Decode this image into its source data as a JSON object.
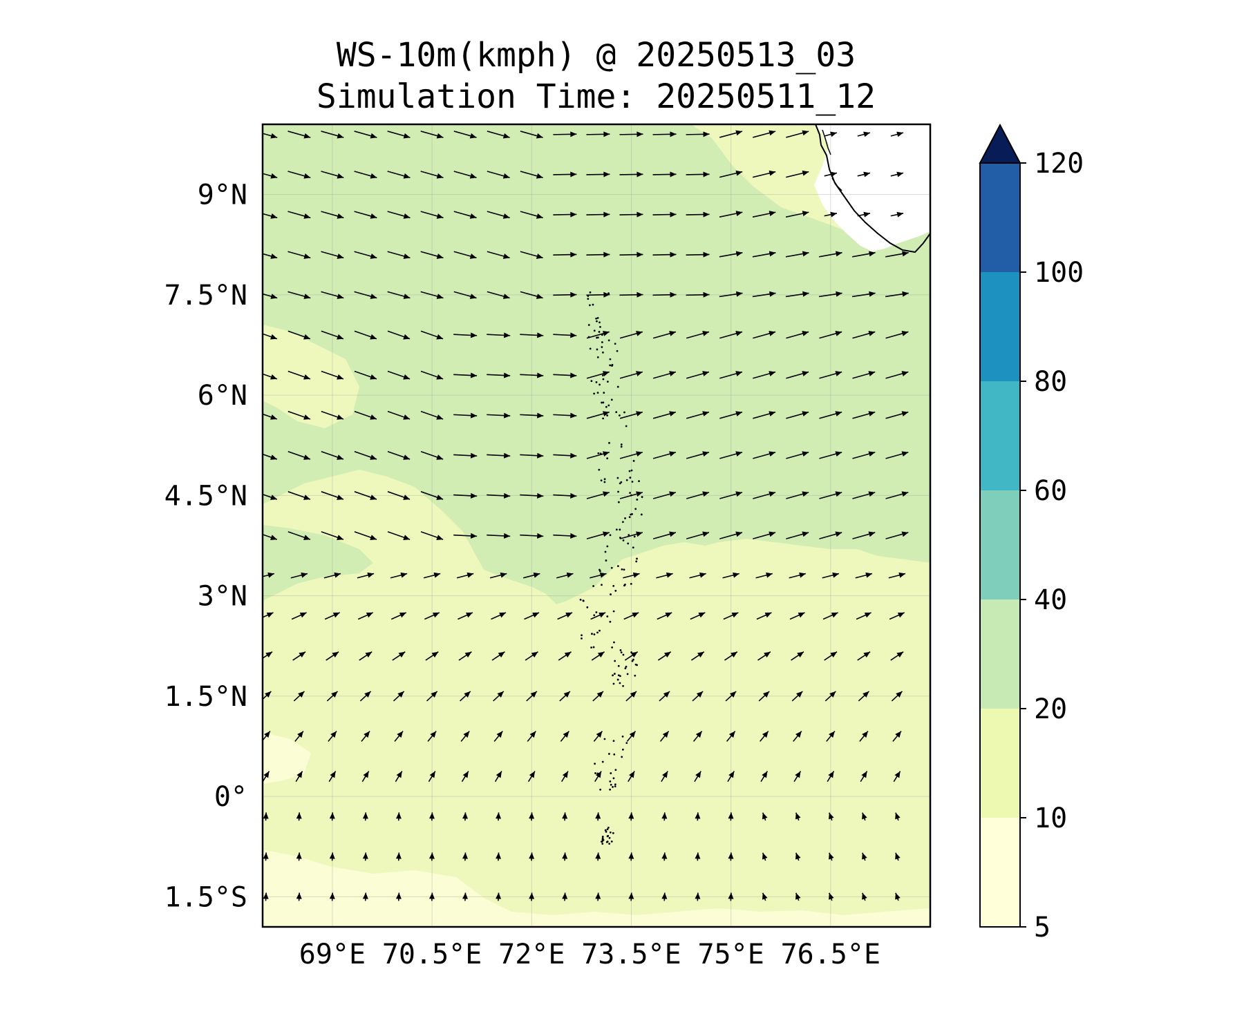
{
  "title": "WS-10m(kmph) @ 20250513_03",
  "subtitle": "Simulation Time: 20250511_12",
  "map": {
    "lon_range": [
      67.95,
      78.0
    ],
    "lat_range": [
      -1.95,
      10.05
    ],
    "lat_ticks": [
      {
        "value": 9,
        "label": "9°N"
      },
      {
        "value": 7.5,
        "label": "7.5°N"
      },
      {
        "value": 6,
        "label": "6°N"
      },
      {
        "value": 4.5,
        "label": "4.5°N"
      },
      {
        "value": 3,
        "label": "3°N"
      },
      {
        "value": 1.5,
        "label": "1.5°N"
      },
      {
        "value": 0,
        "label": "0°"
      },
      {
        "value": -1.5,
        "label": "1.5°S"
      }
    ],
    "lon_ticks": [
      {
        "value": 69,
        "label": "69°E"
      },
      {
        "value": 70.5,
        "label": "70.5°E"
      },
      {
        "value": 72,
        "label": "72°E"
      },
      {
        "value": 73.5,
        "label": "73.5°E"
      },
      {
        "value": 75,
        "label": "75°E"
      },
      {
        "value": 76.5,
        "label": "76.5°E"
      }
    ],
    "gridlines": true,
    "field": "wind speed at 10 m, shaded by speed band, with wind-direction arrows",
    "regions": [
      {
        "name": "north band",
        "speed_band": "20-40",
        "color": "#d1edb3"
      },
      {
        "name": "south band",
        "speed_band": "10-20",
        "color": "#eef8bd"
      },
      {
        "name": "far south calm",
        "speed_band": "5-10",
        "color": "#fbfdd4"
      }
    ],
    "wind_regimes": [
      {
        "lat_range": [
          7.5,
          10
        ],
        "direction": "westerly to west-north-westerly"
      },
      {
        "lat_range": [
          3.5,
          7.5
        ],
        "direction": "westerly, turning west-south-westerly in the east"
      },
      {
        "lat_range": [
          0,
          3.5
        ],
        "direction": "south-westerly"
      },
      {
        "lat_range": [
          -2,
          0
        ],
        "direction": "southerly to south-south-easterly"
      }
    ]
  },
  "colorbar": {
    "levels": [
      "5",
      "10",
      "20",
      "40",
      "60",
      "80",
      "100",
      "120"
    ],
    "colors": [
      "#ffffd9",
      "#edf8b1",
      "#c7e9b4",
      "#7fcdbb",
      "#41b6c4",
      "#1d91c0",
      "#225ea8",
      "#253494"
    ],
    "extend_color": "#081d58",
    "extend": "max"
  },
  "colors": {
    "coastline": "#000000",
    "arrows": "#000000"
  }
}
